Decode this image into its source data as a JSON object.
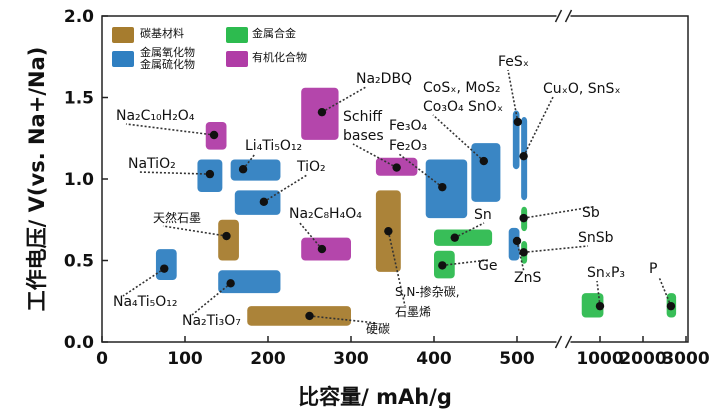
{
  "chart_data": {
    "type": "scatter",
    "title": "",
    "xlabel": "比容量/ mAh/g",
    "ylabel": "工作电压/ V(vs. Na+/Na)",
    "xlim": [
      0,
      3000
    ],
    "ylim": [
      0.0,
      2.0
    ],
    "x_break": "between 500 and 1000",
    "x_ticks": [
      "0",
      "100",
      "200",
      "300",
      "400",
      "500",
      "1000",
      "2000",
      "3000"
    ],
    "y_ticks": [
      "0.0",
      "0.5",
      "1.0",
      "1.5",
      "2.0"
    ],
    "legend": {
      "placement": "top-left",
      "entries": [
        {
          "key": "carbon",
          "label": "碳基材料",
          "color": "#a67c2e"
        },
        {
          "key": "oxide_sulfide",
          "label": [
            "金属氧化物",
            "金属硫化物"
          ],
          "color": "#2f7fc1"
        },
        {
          "key": "alloy",
          "label": "金属合金",
          "color": "#2dbb4f"
        },
        {
          "key": "organic",
          "label": "有机化合物",
          "color": "#b03ca6"
        }
      ]
    },
    "categories_colors": {
      "carbon": "#a67c2e",
      "oxide_sulfide": "#2f7fc1",
      "alloy": "#2dbb4f",
      "organic": "#b03ca6"
    },
    "materials": [
      {
        "name": "Na₂C₁₀H₂O₄",
        "category": "organic",
        "capacity": 135,
        "voltage": 1.27,
        "capacity_range": [
          125,
          150
        ],
        "voltage_range": [
          1.18,
          1.35
        ]
      },
      {
        "name": "NaTiO₂",
        "category": "oxide_sulfide",
        "capacity": 130,
        "voltage": 1.03,
        "capacity_range": [
          115,
          145
        ],
        "voltage_range": [
          0.92,
          1.12
        ]
      },
      {
        "name": "Li₄Ti₅O₁₂",
        "category": "oxide_sulfide",
        "capacity": 170,
        "voltage": 1.06,
        "capacity_range": [
          155,
          215
        ],
        "voltage_range": [
          0.99,
          1.12
        ]
      },
      {
        "name": "TiO₂",
        "category": "oxide_sulfide",
        "capacity": 195,
        "voltage": 0.86,
        "capacity_range": [
          160,
          215
        ],
        "voltage_range": [
          0.78,
          0.93
        ]
      },
      {
        "name": "天然石墨",
        "category": "carbon",
        "capacity": 150,
        "voltage": 0.65,
        "capacity_range": [
          140,
          165
        ],
        "voltage_range": [
          0.5,
          0.75
        ]
      },
      {
        "name": "Na₄Ti₅O₁₂",
        "category": "oxide_sulfide",
        "capacity": 75,
        "voltage": 0.45,
        "capacity_range": [
          65,
          90
        ],
        "voltage_range": [
          0.38,
          0.57
        ]
      },
      {
        "name": "Na₂Ti₃O₇",
        "category": "oxide_sulfide",
        "capacity": 155,
        "voltage": 0.36,
        "capacity_range": [
          140,
          215
        ],
        "voltage_range": [
          0.3,
          0.44
        ]
      },
      {
        "name": "硬碳",
        "category": "carbon",
        "capacity": 250,
        "voltage": 0.16,
        "capacity_range": [
          175,
          300
        ],
        "voltage_range": [
          0.1,
          0.22
        ]
      },
      {
        "name": "Na₂DBQ",
        "category": "organic",
        "capacity": 265,
        "voltage": 1.41,
        "capacity_range": [
          240,
          285
        ],
        "voltage_range": [
          1.24,
          1.56
        ]
      },
      {
        "name": "Na₂C₈H₄O₄",
        "category": "organic",
        "capacity": 265,
        "voltage": 0.57,
        "capacity_range": [
          240,
          300
        ],
        "voltage_range": [
          0.5,
          0.64
        ]
      },
      {
        "name": "Schiff bases",
        "category": "organic",
        "capacity": 355,
        "voltage": 1.07,
        "capacity_range": [
          330,
          380
        ],
        "voltage_range": [
          1.02,
          1.13
        ]
      },
      {
        "name": "S,N-掺杂碳, 石墨烯",
        "category": "carbon",
        "capacity": 345,
        "voltage": 0.68,
        "capacity_range": [
          330,
          360
        ],
        "voltage_range": [
          0.43,
          0.93
        ]
      },
      {
        "name": "Fe₃O₄ Fe₂O₃",
        "category": "oxide_sulfide",
        "capacity": 410,
        "voltage": 0.95,
        "capacity_range": [
          390,
          440
        ],
        "voltage_range": [
          0.76,
          1.12
        ]
      },
      {
        "name": "CoSₓ, MoS₂ Co₃O₄ SnOₓ",
        "category": "oxide_sulfide",
        "capacity": 460,
        "voltage": 1.11,
        "capacity_range": [
          445,
          480
        ],
        "voltage_range": [
          0.86,
          1.22
        ]
      },
      {
        "name": "FeSₓ",
        "category": "oxide_sulfide",
        "capacity": 505,
        "voltage": 1.35,
        "capacity_range": [
          495,
          515
        ],
        "voltage_range": [
          1.06,
          1.42
        ]
      },
      {
        "name": "CuₓO, SnSₓ",
        "category": "oxide_sulfide",
        "capacity": 540,
        "voltage": 1.14,
        "capacity_range": [
          525,
          555
        ],
        "voltage_range": [
          0.87,
          1.38
        ]
      },
      {
        "name": "Sn",
        "category": "alloy",
        "capacity": 425,
        "voltage": 0.64,
        "capacity_range": [
          400,
          470
        ],
        "voltage_range": [
          0.59,
          0.69
        ]
      },
      {
        "name": "Ge",
        "category": "alloy",
        "capacity": 410,
        "voltage": 0.47,
        "capacity_range": [
          400,
          425
        ],
        "voltage_range": [
          0.39,
          0.56
        ]
      },
      {
        "name": "ZnS",
        "category": "oxide_sulfide",
        "capacity": 500,
        "voltage": 0.62,
        "capacity_range": [
          490,
          515
        ],
        "voltage_range": [
          0.5,
          0.7
        ]
      },
      {
        "name": "Sb",
        "category": "alloy",
        "capacity": 540,
        "voltage": 0.76,
        "capacity_range": [
          525,
          560
        ],
        "voltage_range": [
          0.68,
          0.83
        ]
      },
      {
        "name": "SnSb",
        "category": "alloy",
        "capacity": 540,
        "voltage": 0.55,
        "capacity_range": [
          525,
          560
        ],
        "voltage_range": [
          0.48,
          0.62
        ]
      },
      {
        "name": "SnₓP₃",
        "category": "alloy",
        "capacity": 1000,
        "voltage": 0.22,
        "capacity_range": [
          890,
          1080
        ],
        "voltage_range": [
          0.15,
          0.3
        ]
      },
      {
        "name": "P",
        "category": "alloy",
        "capacity": 2650,
        "voltage": 0.22,
        "capacity_range": [
          2550,
          2770
        ],
        "voltage_range": [
          0.15,
          0.3
        ]
      }
    ]
  }
}
